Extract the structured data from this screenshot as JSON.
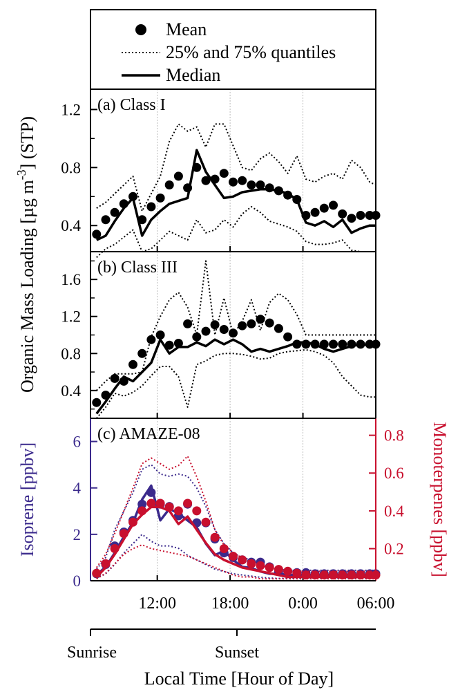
{
  "legend": {
    "mean_label": "Mean",
    "quantile_label": "25% and 75% quantiles",
    "median_label": "Median"
  },
  "y_label_main": "Organic Mass Loading [µg m",
  "y_label_exp": "-3",
  "y_label_tail": "] (STP)",
  "x_axis_label": "Local Time [Hour of Day]",
  "sunrise_label": "Sunrise",
  "sunset_label": "Sunset",
  "colors": {
    "black": "#000000",
    "isoprene": "#3b2a8c",
    "monoterpene": "#c8102e",
    "grid": "#bbbbbb"
  },
  "chart_data": [
    {
      "type": "line",
      "panel": "a",
      "title": "(a) Class I",
      "x_ticks": [
        "12:00",
        "18:00",
        "0:00",
        "06:00"
      ],
      "xlim_hours": [
        6.5,
        30.0
      ],
      "yticks": [
        "0.4",
        "0.8",
        "1.2"
      ],
      "ylim": [
        0.22,
        1.34
      ],
      "x_hours": [
        7,
        7.75,
        8.5,
        9.25,
        10,
        10.75,
        11.5,
        12.25,
        13,
        13.75,
        14.5,
        15.25,
        16,
        16.75,
        17.5,
        18.25,
        19,
        19.75,
        20.5,
        21.25,
        22,
        22.75,
        23.5,
        24.25,
        25,
        25.75,
        26.5,
        27.25,
        28,
        28.75,
        29.5,
        30
      ],
      "series": [
        {
          "name": "Mean",
          "style": "dots",
          "values": [
            0.34,
            0.44,
            0.49,
            0.55,
            0.6,
            0.44,
            0.53,
            0.59,
            0.68,
            0.74,
            0.66,
            0.8,
            0.71,
            0.72,
            0.76,
            0.7,
            0.71,
            0.68,
            0.68,
            0.66,
            0.64,
            0.61,
            0.58,
            0.47,
            0.49,
            0.52,
            0.54,
            0.48,
            0.45,
            0.47,
            0.47,
            0.47
          ]
        },
        {
          "name": "Median",
          "style": "solid",
          "values": [
            0.3,
            0.33,
            0.43,
            0.52,
            0.59,
            0.33,
            0.44,
            0.5,
            0.55,
            0.57,
            0.59,
            0.92,
            0.77,
            0.68,
            0.59,
            0.6,
            0.63,
            0.64,
            0.65,
            0.65,
            0.64,
            0.62,
            0.58,
            0.42,
            0.4,
            0.43,
            0.39,
            0.44,
            0.35,
            0.38,
            0.4,
            0.4
          ]
        },
        {
          "name": "25% quantile",
          "style": "dotted",
          "values": [
            0.18,
            0.24,
            0.27,
            0.32,
            0.37,
            0.22,
            0.24,
            0.3,
            0.36,
            0.33,
            0.3,
            0.44,
            0.35,
            0.37,
            0.44,
            0.39,
            0.48,
            0.53,
            0.49,
            0.43,
            0.41,
            0.39,
            0.36,
            0.29,
            0.27,
            0.27,
            0.28,
            0.3,
            0.23,
            0.22,
            0.22,
            0.22
          ]
        },
        {
          "name": "75% quantile",
          "style": "dotted",
          "values": [
            0.52,
            0.56,
            0.62,
            0.68,
            0.74,
            0.5,
            0.62,
            0.74,
            0.98,
            1.1,
            1.05,
            1.08,
            0.94,
            1.1,
            1.1,
            0.95,
            0.8,
            0.78,
            0.86,
            0.9,
            0.84,
            0.76,
            0.88,
            0.72,
            0.7,
            0.74,
            0.76,
            0.72,
            0.85,
            0.8,
            0.7,
            0.68
          ]
        }
      ]
    },
    {
      "type": "line",
      "panel": "b",
      "title": "(b) Class III",
      "x_ticks": [
        "12:00",
        "18:00",
        "0:00",
        "06:00"
      ],
      "xlim_hours": [
        6.5,
        30.0
      ],
      "yticks": [
        "0.4",
        "0.8",
        "1.2",
        "1.6"
      ],
      "ylim": [
        0.1,
        1.9
      ],
      "x_hours": [
        7,
        7.75,
        8.5,
        9.25,
        10,
        10.75,
        11.5,
        12.25,
        13,
        13.75,
        14.5,
        15.25,
        16,
        16.75,
        17.5,
        18.25,
        19,
        19.75,
        20.5,
        21.25,
        22,
        22.75,
        23.5,
        24.25,
        25,
        25.75,
        26.5,
        27.25,
        28,
        28.75,
        29.5,
        30
      ],
      "series": [
        {
          "name": "Mean",
          "style": "dots",
          "values": [
            0.27,
            0.35,
            0.53,
            0.5,
            0.68,
            0.8,
            0.95,
            1.0,
            0.89,
            0.91,
            1.12,
            0.98,
            1.04,
            1.11,
            1.06,
            1.02,
            1.1,
            1.12,
            1.17,
            1.13,
            1.07,
            0.98,
            0.9,
            0.9,
            0.9,
            0.9,
            0.9,
            0.9,
            0.9,
            0.9,
            0.9,
            0.9
          ]
        },
        {
          "name": "Median",
          "style": "solid",
          "values": [
            0.15,
            0.28,
            0.42,
            0.55,
            0.5,
            0.6,
            0.7,
            0.95,
            0.8,
            0.87,
            0.87,
            0.92,
            0.88,
            0.95,
            0.9,
            0.95,
            0.9,
            0.82,
            0.85,
            0.82,
            0.85,
            0.88,
            0.92,
            0.92,
            0.9,
            0.85,
            0.82,
            0.85,
            0.88,
            0.9,
            0.89,
            0.89
          ]
        },
        {
          "name": "25% quantile",
          "style": "dotted",
          "values": [
            0.1,
            0.22,
            0.37,
            0.34,
            0.38,
            0.45,
            0.56,
            0.66,
            0.66,
            0.55,
            0.22,
            0.68,
            0.72,
            0.78,
            0.8,
            0.8,
            0.79,
            0.77,
            0.74,
            0.75,
            0.8,
            0.82,
            0.83,
            0.84,
            0.82,
            0.78,
            0.7,
            0.55,
            0.45,
            0.35,
            0.33,
            0.33
          ]
        },
        {
          "name": "75% quantile",
          "style": "dotted",
          "values": [
            0.4,
            0.5,
            0.58,
            0.58,
            0.58,
            0.6,
            0.98,
            1.2,
            1.38,
            1.46,
            1.3,
            1.0,
            1.8,
            1.0,
            1.4,
            1.0,
            1.15,
            1.38,
            1.05,
            1.35,
            1.45,
            1.38,
            1.22,
            1.0,
            1.0,
            1.0,
            1.0,
            1.0,
            1.0,
            1.0,
            1.0,
            1.0
          ]
        }
      ]
    },
    {
      "type": "line",
      "panel": "c",
      "title": "(c) AMAZE-08",
      "x_ticks": [
        "12:00",
        "18:00",
        "0:00",
        "06:00"
      ],
      "xlim_hours": [
        6.5,
        30.0
      ],
      "y_left_label": "Isoprene [ppbv]",
      "y_left_ticks": [
        "0",
        "2",
        "4",
        "6"
      ],
      "y_left_lim": [
        0,
        7
      ],
      "y_right_label": "Monoterpenes [ppbv]",
      "y_right_ticks": [
        "0.2",
        "0.4",
        "0.6",
        "0.8"
      ],
      "y_right_lim": [
        0.03,
        0.89
      ],
      "x_hours": [
        7,
        7.75,
        8.5,
        9.25,
        10,
        10.75,
        11.5,
        12.25,
        13,
        13.75,
        14.5,
        15.25,
        16,
        16.75,
        17.5,
        18.25,
        19,
        19.75,
        20.5,
        21.25,
        22,
        22.75,
        23.5,
        24.25,
        25,
        25.75,
        26.5,
        27.25,
        28,
        28.75,
        29.5,
        30
      ],
      "series": [
        {
          "name": "Isoprene mean",
          "axis": "left",
          "style": "dots",
          "values": [
            0.3,
            0.7,
            1.5,
            2.1,
            2.6,
            3.3,
            3.8,
            3.3,
            3.2,
            2.8,
            3.3,
            2.5,
            2.5,
            1.8,
            1.2,
            1.0,
            0.9,
            0.8,
            0.8,
            0.6,
            0.4,
            0.4,
            0.35,
            0.35,
            0.3,
            0.3,
            0.3,
            0.3,
            0.3,
            0.3,
            0.3,
            0.3
          ]
        },
        {
          "name": "Isoprene median",
          "axis": "left",
          "style": "solid",
          "values": [
            0.25,
            0.6,
            1.2,
            1.9,
            2.5,
            3.5,
            4.1,
            2.6,
            3.1,
            2.9,
            2.6,
            2.3,
            1.6,
            1.1,
            1.3,
            0.9,
            0.6,
            0.55,
            0.4,
            0.3,
            0.3,
            0.25,
            0.25,
            0.25,
            0.25,
            0.25,
            0.25,
            0.25,
            0.25,
            0.25,
            0.25,
            0.25
          ]
        },
        {
          "name": "Isoprene 25%",
          "axis": "left",
          "style": "dotted",
          "values": [
            0.1,
            0.3,
            0.7,
            1.2,
            1.6,
            2.0,
            1.7,
            1.5,
            1.5,
            1.4,
            1.1,
            0.9,
            0.7,
            0.5,
            0.4,
            0.3,
            0.25,
            0.2,
            0.15,
            0.12,
            0.1,
            0.1,
            0.1,
            0.1,
            0.1,
            0.1,
            0.1,
            0.1,
            0.1,
            0.1,
            0.1,
            0.1
          ]
        },
        {
          "name": "Isoprene 75%",
          "axis": "left",
          "style": "dotted",
          "values": [
            0.5,
            1.0,
            2.2,
            3.0,
            3.8,
            4.8,
            5.0,
            4.6,
            4.5,
            4.6,
            4.5,
            4.0,
            3.2,
            2.2,
            1.6,
            1.2,
            1.0,
            0.9,
            0.7,
            0.6,
            0.5,
            0.45,
            0.45,
            0.45,
            0.45,
            0.45,
            0.45,
            0.45,
            0.45,
            0.45,
            0.45,
            0.45
          ]
        },
        {
          "name": "Monoterpenes mean",
          "axis": "right",
          "style": "dots",
          "values": [
            0.07,
            0.12,
            0.2,
            0.28,
            0.34,
            0.4,
            0.44,
            0.44,
            0.42,
            0.4,
            0.44,
            0.4,
            0.34,
            0.26,
            0.2,
            0.16,
            0.14,
            0.12,
            0.11,
            0.1,
            0.09,
            0.08,
            0.07,
            0.06,
            0.06,
            0.06,
            0.06,
            0.06,
            0.06,
            0.06,
            0.06,
            0.06
          ]
        },
        {
          "name": "Monoterpenes median",
          "axis": "right",
          "style": "solid",
          "values": [
            0.05,
            0.1,
            0.17,
            0.25,
            0.33,
            0.38,
            0.42,
            0.42,
            0.4,
            0.33,
            0.37,
            0.3,
            0.23,
            0.17,
            0.14,
            0.12,
            0.1,
            0.09,
            0.08,
            0.07,
            0.06,
            0.05,
            0.05,
            0.05,
            0.05,
            0.05,
            0.05,
            0.05,
            0.05,
            0.05,
            0.05,
            0.05
          ]
        },
        {
          "name": "Monoterpenes 25%",
          "axis": "right",
          "style": "dotted",
          "values": [
            0.04,
            0.07,
            0.12,
            0.17,
            0.2,
            0.22,
            0.2,
            0.19,
            0.18,
            0.17,
            0.16,
            0.14,
            0.12,
            0.1,
            0.08,
            0.06,
            0.05,
            0.05,
            0.04,
            0.04,
            0.04,
            0.04,
            0.04,
            0.04,
            0.04,
            0.04,
            0.04,
            0.04,
            0.04,
            0.04,
            0.04,
            0.04
          ]
        },
        {
          "name": "Monoterpenes 75%",
          "axis": "right",
          "style": "dotted",
          "values": [
            0.1,
            0.17,
            0.28,
            0.4,
            0.52,
            0.65,
            0.68,
            0.65,
            0.62,
            0.64,
            0.69,
            0.58,
            0.45,
            0.3,
            0.22,
            0.18,
            0.15,
            0.13,
            0.11,
            0.1,
            0.09,
            0.08,
            0.08,
            0.08,
            0.08,
            0.08,
            0.08,
            0.08,
            0.08,
            0.08,
            0.08,
            0.08
          ]
        }
      ]
    }
  ]
}
